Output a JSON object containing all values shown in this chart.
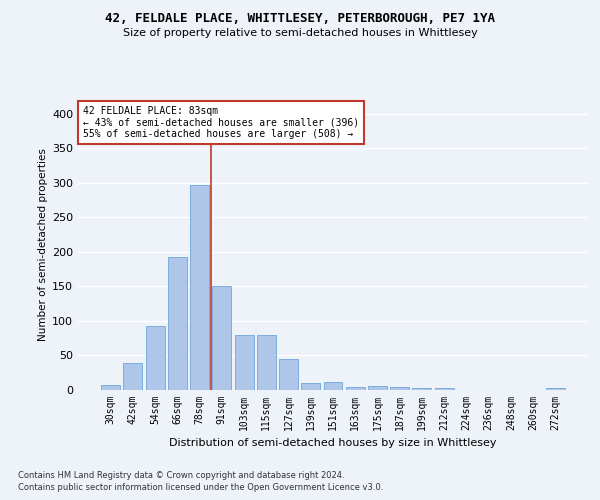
{
  "title": "42, FELDALE PLACE, WHITTLESEY, PETERBOROUGH, PE7 1YA",
  "subtitle": "Size of property relative to semi-detached houses in Whittlesey",
  "xlabel": "Distribution of semi-detached houses by size in Whittlesey",
  "ylabel": "Number of semi-detached properties",
  "categories": [
    "30sqm",
    "42sqm",
    "54sqm",
    "66sqm",
    "78sqm",
    "91sqm",
    "103sqm",
    "115sqm",
    "127sqm",
    "139sqm",
    "151sqm",
    "163sqm",
    "175sqm",
    "187sqm",
    "199sqm",
    "212sqm",
    "224sqm",
    "236sqm",
    "248sqm",
    "260sqm",
    "272sqm"
  ],
  "values": [
    7,
    39,
    93,
    192,
    297,
    150,
    80,
    80,
    45,
    10,
    12,
    5,
    6,
    4,
    3,
    3,
    0,
    0,
    0,
    0,
    3
  ],
  "bar_color": "#aec6e8",
  "bar_edge_color": "#5b9bd5",
  "vline_x_index": 4.5,
  "vline_color": "#c0392b",
  "annotation_text": "42 FELDALE PLACE: 83sqm\n← 43% of semi-detached houses are smaller (396)\n55% of semi-detached houses are larger (508) →",
  "annotation_box_color": "white",
  "annotation_box_edge": "#c0392b",
  "ylim": [
    0,
    420
  ],
  "yticks": [
    0,
    50,
    100,
    150,
    200,
    250,
    300,
    350,
    400
  ],
  "footnote_line1": "Contains HM Land Registry data © Crown copyright and database right 2024.",
  "footnote_line2": "Contains public sector information licensed under the Open Government Licence v3.0.",
  "bg_color": "#eef2f9",
  "grid_color": "white"
}
